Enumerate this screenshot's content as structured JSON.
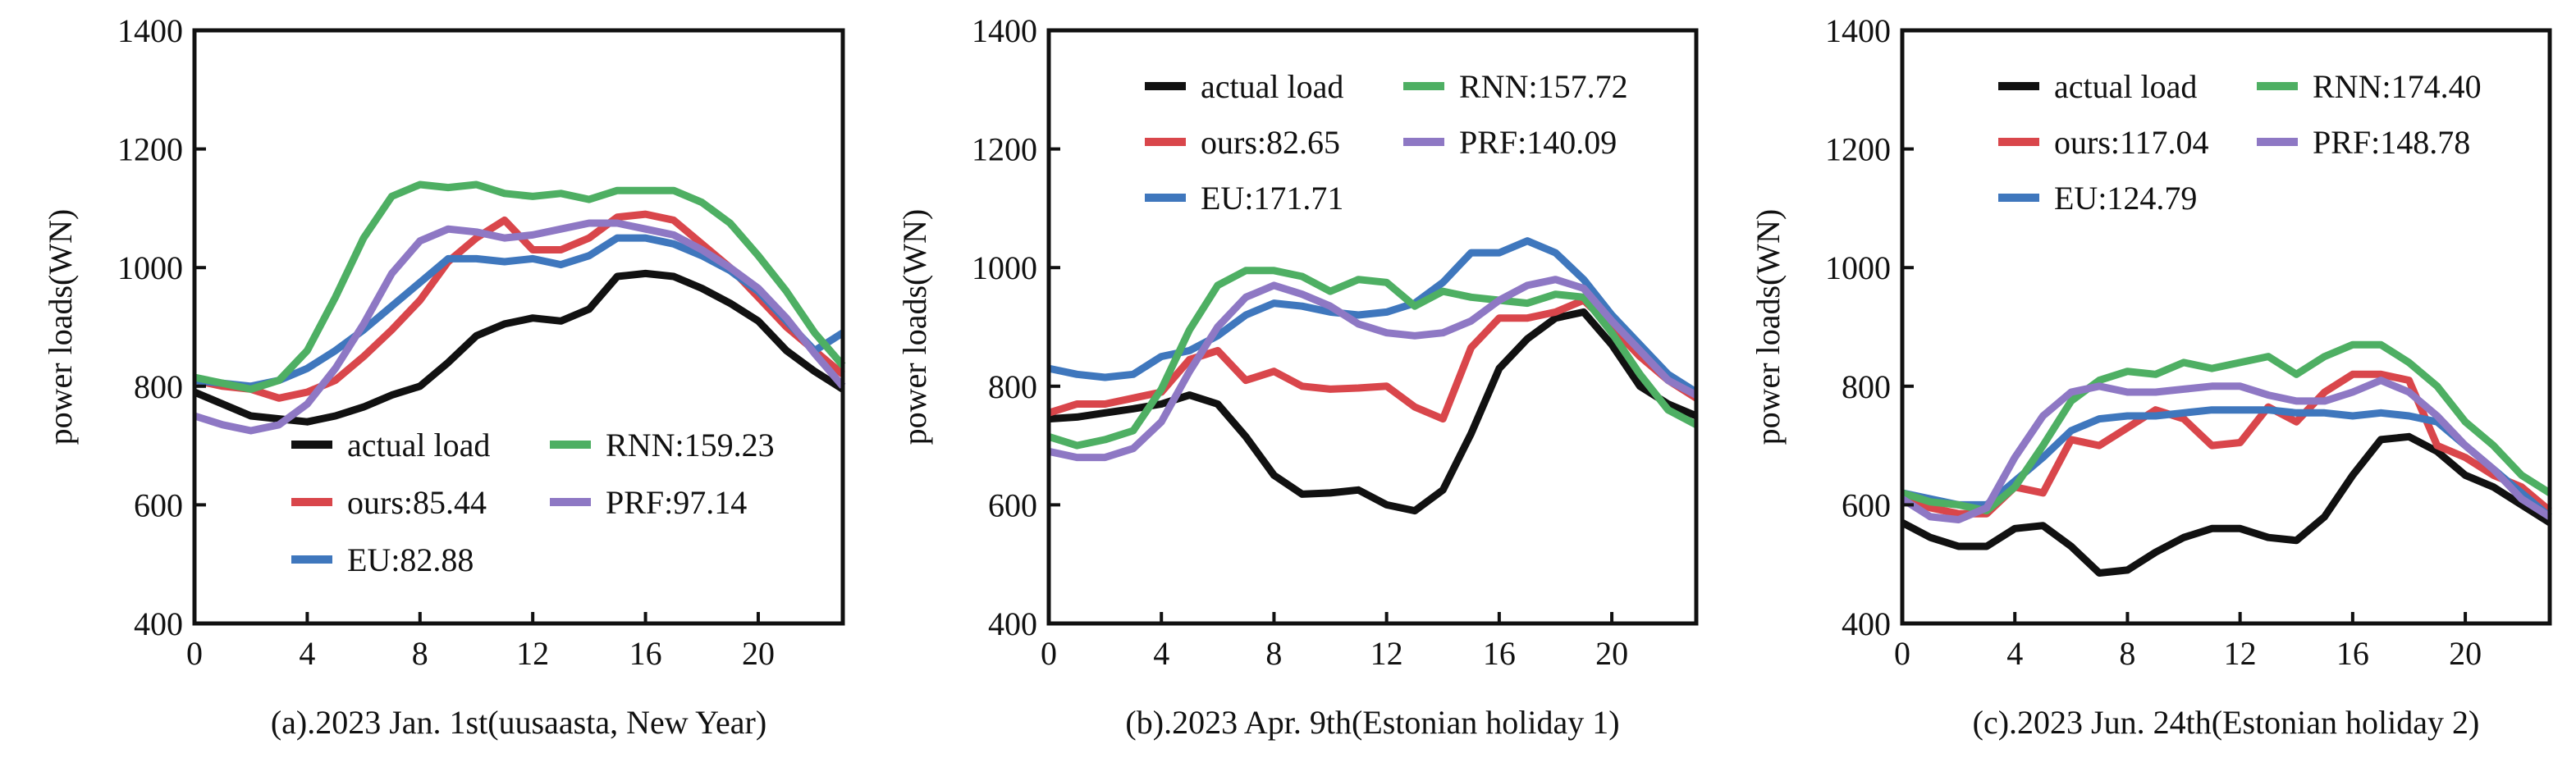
{
  "colors": {
    "actual load": "#111111",
    "ours": "#d9464b",
    "EU": "#3f77bd",
    "RNN": "#4eaf63",
    "PRF": "#8e78c4"
  },
  "chart_data": [
    {
      "type": "line",
      "caption": "(a).2023 Jan. 1st(uusaasta, New Year)",
      "ylabel": "power loads(WN)",
      "xlabel": "",
      "xlim": [
        0,
        23
      ],
      "ylim": [
        400,
        1400
      ],
      "xticks": [
        0,
        4,
        8,
        12,
        16,
        20
      ],
      "yticks": [
        400,
        600,
        800,
        1000,
        1200,
        1400
      ],
      "grid": false,
      "legend_position": "lower-center",
      "x": [
        0,
        1,
        2,
        3,
        4,
        5,
        6,
        7,
        8,
        9,
        10,
        11,
        12,
        13,
        14,
        15,
        16,
        17,
        18,
        19,
        20,
        21,
        22,
        23
      ],
      "series": [
        {
          "name": "actual load",
          "legend": "actual load",
          "values": [
            790,
            770,
            750,
            745,
            740,
            750,
            765,
            785,
            800,
            840,
            885,
            905,
            915,
            910,
            930,
            985,
            990,
            985,
            965,
            940,
            910,
            860,
            825,
            795
          ]
        },
        {
          "name": "ours",
          "legend": "ours:85.44",
          "values": [
            810,
            800,
            795,
            780,
            790,
            810,
            850,
            895,
            945,
            1010,
            1050,
            1080,
            1030,
            1030,
            1050,
            1085,
            1090,
            1080,
            1040,
            1000,
            950,
            900,
            860,
            820
          ]
        },
        {
          "name": "EU",
          "legend": "EU:82.88",
          "values": [
            810,
            805,
            800,
            810,
            830,
            860,
            895,
            935,
            975,
            1015,
            1015,
            1010,
            1015,
            1005,
            1020,
            1050,
            1050,
            1040,
            1020,
            995,
            960,
            910,
            860,
            890
          ]
        },
        {
          "name": "RNN",
          "legend": "RNN:159.23",
          "values": [
            815,
            805,
            795,
            810,
            860,
            950,
            1050,
            1120,
            1140,
            1135,
            1140,
            1125,
            1120,
            1125,
            1115,
            1130,
            1130,
            1130,
            1110,
            1075,
            1020,
            960,
            890,
            835
          ]
        },
        {
          "name": "PRF",
          "legend": "PRF:97.14",
          "values": [
            750,
            735,
            725,
            735,
            770,
            830,
            905,
            990,
            1045,
            1065,
            1060,
            1050,
            1055,
            1065,
            1075,
            1075,
            1065,
            1055,
            1030,
            1000,
            965,
            915,
            855,
            800
          ]
        }
      ]
    },
    {
      "type": "line",
      "caption": "(b).2023 Apr. 9th(Estonian holiday 1)",
      "ylabel": "power loads(WN)",
      "xlabel": "",
      "xlim": [
        0,
        23
      ],
      "ylim": [
        400,
        1400
      ],
      "xticks": [
        0,
        4,
        8,
        12,
        16,
        20
      ],
      "yticks": [
        400,
        600,
        800,
        1000,
        1200,
        1400
      ],
      "grid": false,
      "legend_position": "top",
      "x": [
        0,
        1,
        2,
        3,
        4,
        5,
        6,
        7,
        8,
        9,
        10,
        11,
        12,
        13,
        14,
        15,
        16,
        17,
        18,
        19,
        20,
        21,
        22,
        23
      ],
      "series": [
        {
          "name": "actual load",
          "legend": "actual load",
          "values": [
            745,
            748,
            755,
            762,
            770,
            785,
            770,
            715,
            650,
            618,
            620,
            625,
            600,
            590,
            625,
            720,
            830,
            880,
            915,
            925,
            870,
            800,
            770,
            750
          ]
        },
        {
          "name": "ours",
          "legend": "ours:82.65",
          "values": [
            755,
            770,
            770,
            780,
            790,
            845,
            860,
            810,
            825,
            800,
            795,
            797,
            800,
            765,
            745,
            865,
            915,
            915,
            925,
            945,
            900,
            850,
            810,
            780
          ]
        },
        {
          "name": "EU",
          "legend": "EU:171.71",
          "values": [
            830,
            820,
            815,
            820,
            850,
            860,
            885,
            920,
            940,
            935,
            925,
            920,
            925,
            940,
            975,
            1025,
            1025,
            1045,
            1025,
            980,
            920,
            870,
            820,
            790
          ]
        },
        {
          "name": "RNN",
          "legend": "RNN:157.72",
          "values": [
            715,
            700,
            710,
            725,
            795,
            895,
            970,
            995,
            995,
            985,
            960,
            980,
            975,
            935,
            960,
            950,
            945,
            940,
            955,
            950,
            890,
            820,
            760,
            735
          ]
        },
        {
          "name": "PRF",
          "legend": "PRF:140.09",
          "values": [
            690,
            680,
            680,
            695,
            740,
            825,
            900,
            950,
            970,
            955,
            935,
            905,
            890,
            885,
            890,
            910,
            945,
            970,
            980,
            965,
            910,
            860,
            810,
            785
          ]
        }
      ]
    },
    {
      "type": "line",
      "caption": "(c).2023 Jun. 24th(Estonian holiday 2)",
      "ylabel": "power loads(WN)",
      "xlabel": "",
      "xlim": [
        0,
        23
      ],
      "ylim": [
        400,
        1400
      ],
      "xticks": [
        0,
        4,
        8,
        12,
        16,
        20
      ],
      "yticks": [
        400,
        600,
        800,
        1000,
        1200,
        1400
      ],
      "grid": false,
      "legend_position": "top",
      "x": [
        0,
        1,
        2,
        3,
        4,
        5,
        6,
        7,
        8,
        9,
        10,
        11,
        12,
        13,
        14,
        15,
        16,
        17,
        18,
        19,
        20,
        21,
        22,
        23
      ],
      "series": [
        {
          "name": "actual load",
          "legend": "actual load",
          "values": [
            570,
            545,
            530,
            530,
            560,
            565,
            530,
            485,
            490,
            520,
            545,
            560,
            560,
            545,
            540,
            580,
            650,
            710,
            715,
            690,
            650,
            630,
            600,
            570
          ]
        },
        {
          "name": "ours",
          "legend": "ours:117.04",
          "values": [
            610,
            595,
            585,
            585,
            630,
            620,
            710,
            700,
            730,
            760,
            745,
            700,
            705,
            765,
            740,
            790,
            820,
            820,
            810,
            700,
            680,
            650,
            630,
            590
          ]
        },
        {
          "name": "EU",
          "legend": "EU:124.79",
          "values": [
            620,
            610,
            600,
            600,
            640,
            680,
            725,
            745,
            750,
            750,
            755,
            760,
            760,
            760,
            755,
            755,
            750,
            755,
            750,
            740,
            700,
            660,
            620,
            580
          ]
        },
        {
          "name": "RNN",
          "legend": "RNN:174.40",
          "values": [
            620,
            605,
            600,
            590,
            630,
            700,
            775,
            810,
            825,
            820,
            840,
            830,
            840,
            850,
            820,
            850,
            870,
            870,
            840,
            800,
            740,
            700,
            650,
            620
          ]
        },
        {
          "name": "PRF",
          "legend": "PRF:148.78",
          "values": [
            610,
            580,
            575,
            595,
            680,
            750,
            790,
            800,
            790,
            790,
            795,
            800,
            800,
            785,
            775,
            775,
            790,
            810,
            790,
            750,
            700,
            660,
            610,
            580
          ]
        }
      ]
    }
  ]
}
